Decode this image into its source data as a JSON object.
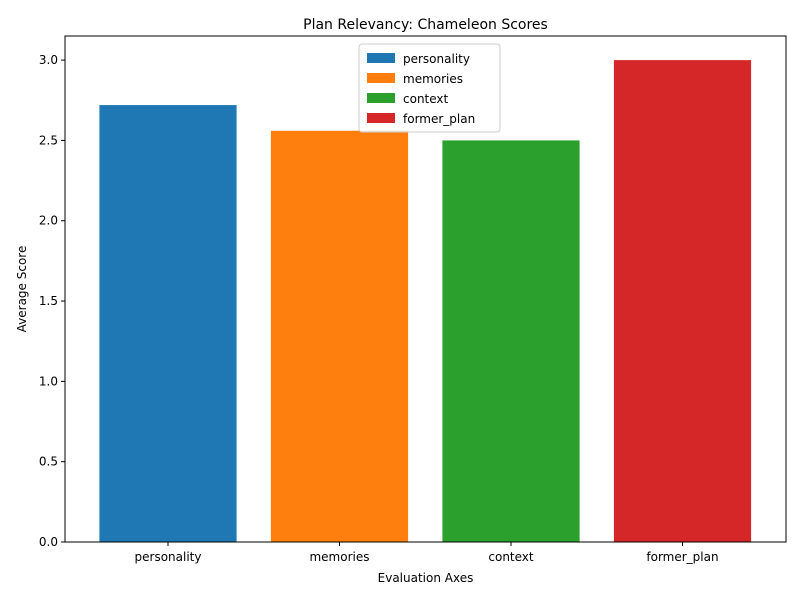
{
  "chart_data": {
    "type": "bar",
    "title": "Plan Relevancy: Chameleon Scores",
    "xlabel": "Evaluation Axes",
    "ylabel": "Average Score",
    "categories": [
      "personality",
      "memories",
      "context",
      "former_plan"
    ],
    "values": [
      2.72,
      2.56,
      2.5,
      3.0
    ],
    "colors": [
      "#1f77b4",
      "#ff7f0e",
      "#2ca02c",
      "#d62728"
    ],
    "ylim": [
      0,
      3.15
    ],
    "yticks": [
      "0.0",
      "0.5",
      "1.0",
      "1.5",
      "2.0",
      "2.5",
      "3.0"
    ],
    "grid": false,
    "legend": {
      "placement": "upper-center",
      "entries": [
        "personality",
        "memories",
        "context",
        "former_plan"
      ]
    }
  }
}
